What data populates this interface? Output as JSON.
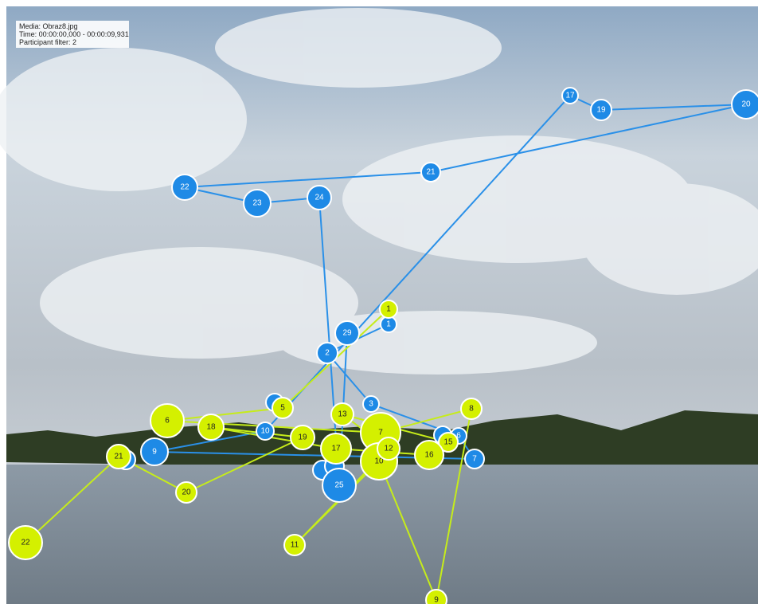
{
  "info": {
    "media": "Media: Obraz8.jpg",
    "time": "Time: 00:00:00,000 - 00:00:09,931",
    "filter": "Participant filter: 2"
  },
  "fixations": {
    "blue": [
      1,
      2,
      3,
      6,
      7,
      9,
      10,
      17,
      19,
      20,
      21,
      22,
      23,
      24,
      25,
      29
    ],
    "yellow": [
      1,
      5,
      6,
      7,
      8,
      9,
      10,
      11,
      12,
      13,
      15,
      16,
      17,
      18,
      19,
      20,
      21,
      22
    ]
  }
}
